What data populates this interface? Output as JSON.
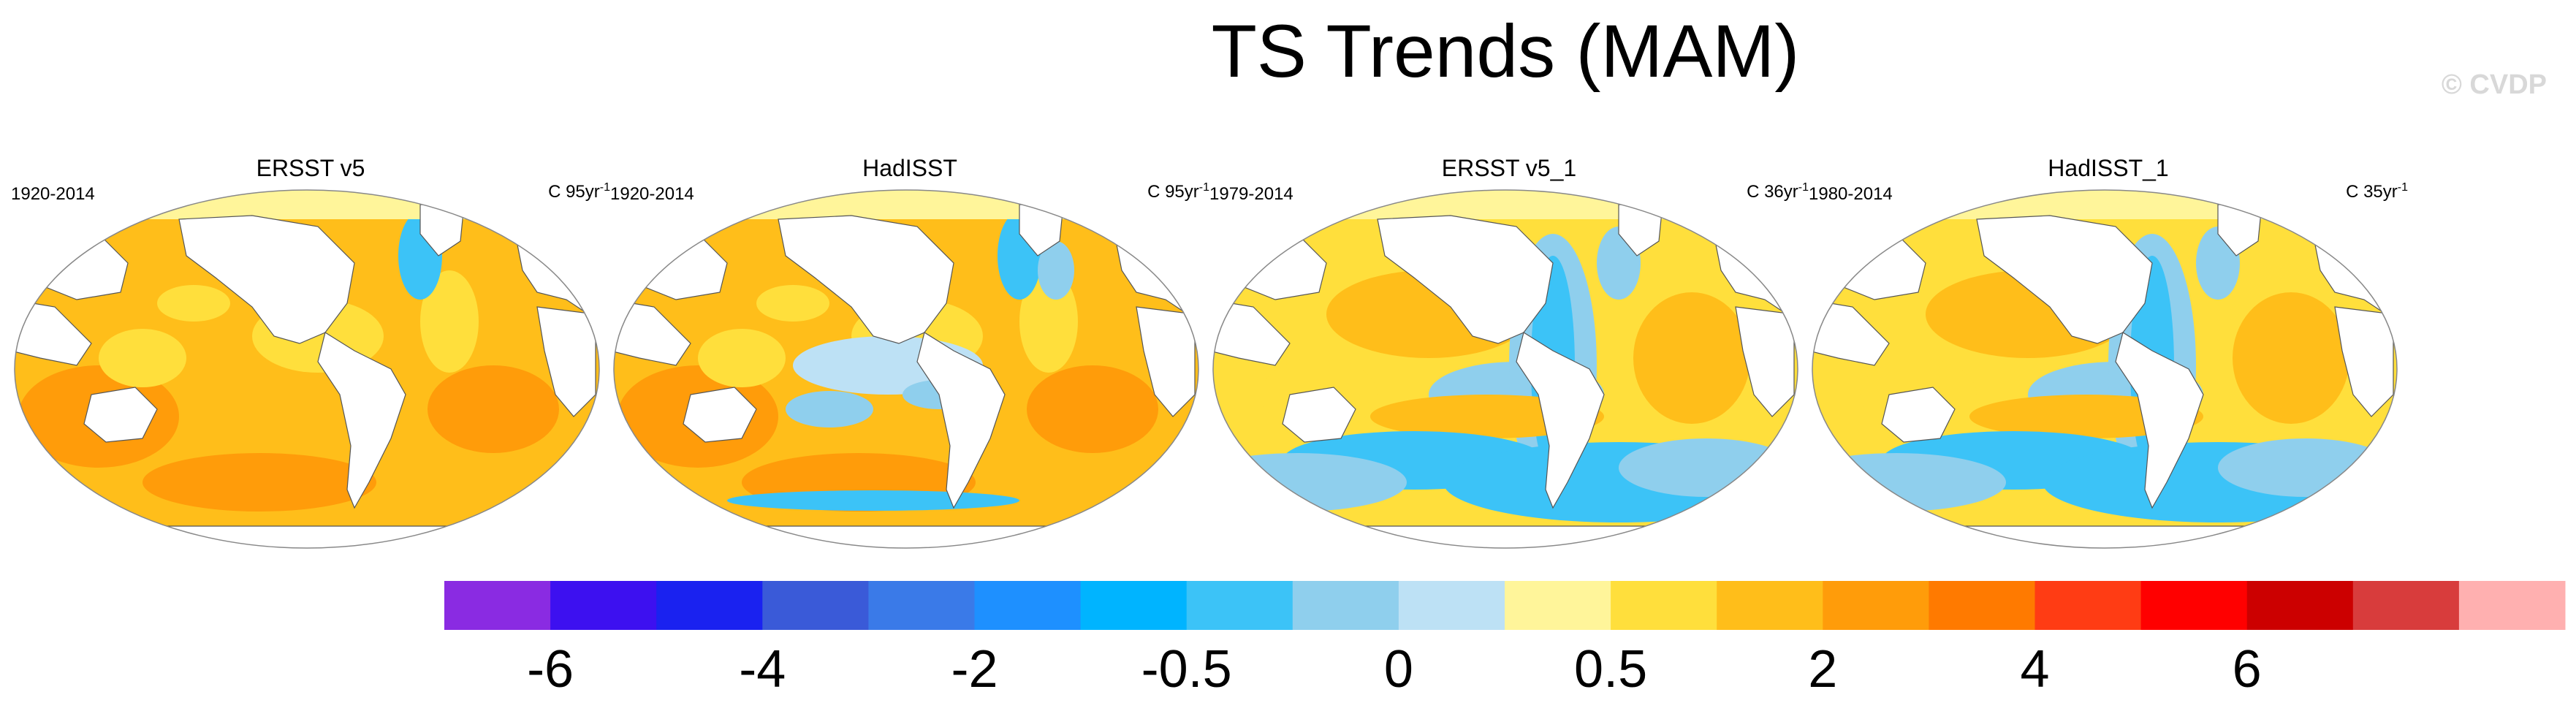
{
  "title": "TS Trends (MAM)",
  "watermark": "© CVDP",
  "chart_data": {
    "type": "heatmap",
    "title": "TS Trends (MAM)",
    "panels": [
      {
        "name": "ERSST v5",
        "period": "1920-2014",
        "units": "C 95yr",
        "units_exp": "-1",
        "dominant": "warming"
      },
      {
        "name": "HadISST",
        "period": "1920-2014",
        "units": "C 95yr",
        "units_exp": "-1",
        "dominant": "warming"
      },
      {
        "name": "ERSST v5_1",
        "period": "1979-2014",
        "units": "C 36yr",
        "units_exp": "-1",
        "dominant": "mixed"
      },
      {
        "name": "HadISST_1",
        "period": "1980-2014",
        "units": "C 35yr",
        "units_exp": "-1",
        "dominant": "mixed"
      }
    ],
    "colorbar": {
      "colors": [
        "#8a2be2",
        "#3d10f0",
        "#1a22f0",
        "#3a5ad8",
        "#3a7ae8",
        "#1e90ff",
        "#00b4ff",
        "#3cc3f7",
        "#8fcfed",
        "#bde1f5",
        "#fff59a",
        "#ffdf3c",
        "#ffbe1a",
        "#ff9c0a",
        "#ff7a00",
        "#ff3c14",
        "#ff0000",
        "#cc0000",
        "#d83c3c",
        "#ffb0b0"
      ],
      "tick_labels": [
        "-6",
        "-4",
        "-2",
        "-0.5",
        "0",
        "0.5",
        "2",
        "4",
        "6"
      ],
      "tick_boundaries": [
        1,
        3,
        5,
        7,
        9,
        11,
        13,
        15,
        17
      ]
    }
  }
}
